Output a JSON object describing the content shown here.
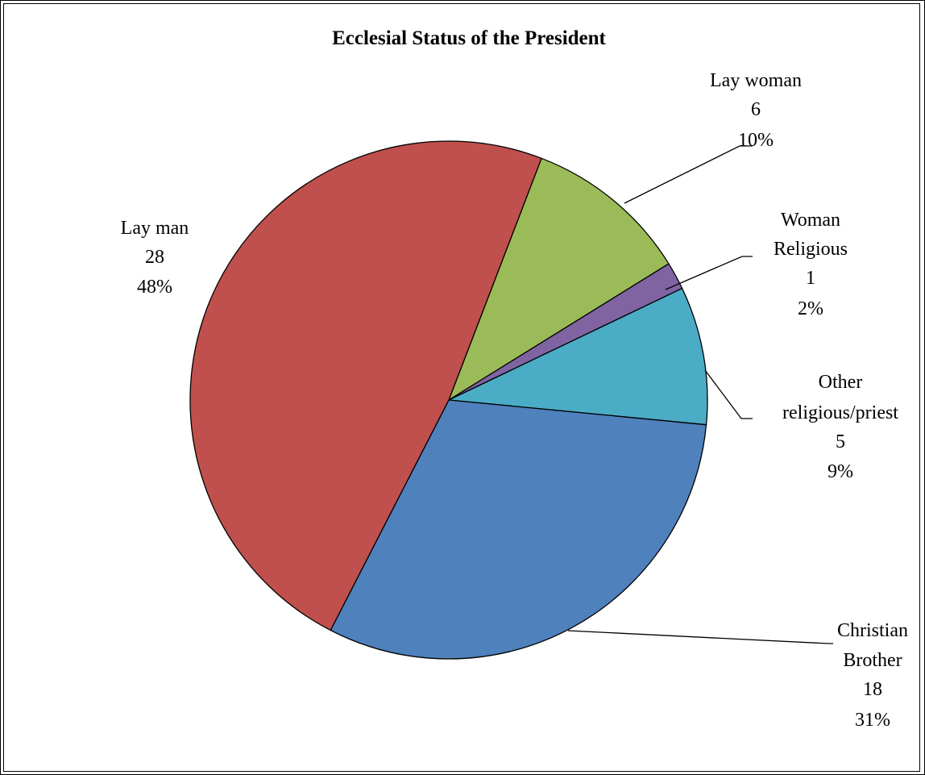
{
  "chart_data": {
    "type": "pie",
    "title": "Ecclesial Status of the President",
    "slices": [
      {
        "label": [
          "Lay woman"
        ],
        "value": 6,
        "percent": "10%",
        "color": "#9BBB59"
      },
      {
        "label": [
          "Woman",
          "Religious"
        ],
        "value": 1,
        "percent": "2%",
        "color": "#8064A2"
      },
      {
        "label": [
          "Other",
          "religious/priest"
        ],
        "value": 5,
        "percent": "9%",
        "color": "#4BACC6"
      },
      {
        "label": [
          "Christian",
          "Brother"
        ],
        "value": 18,
        "percent": "31%",
        "color": "#4F81BD"
      },
      {
        "label": [
          "Lay man"
        ],
        "value": 28,
        "percent": "48%",
        "color": "#C0504D"
      }
    ],
    "legend": "none"
  }
}
